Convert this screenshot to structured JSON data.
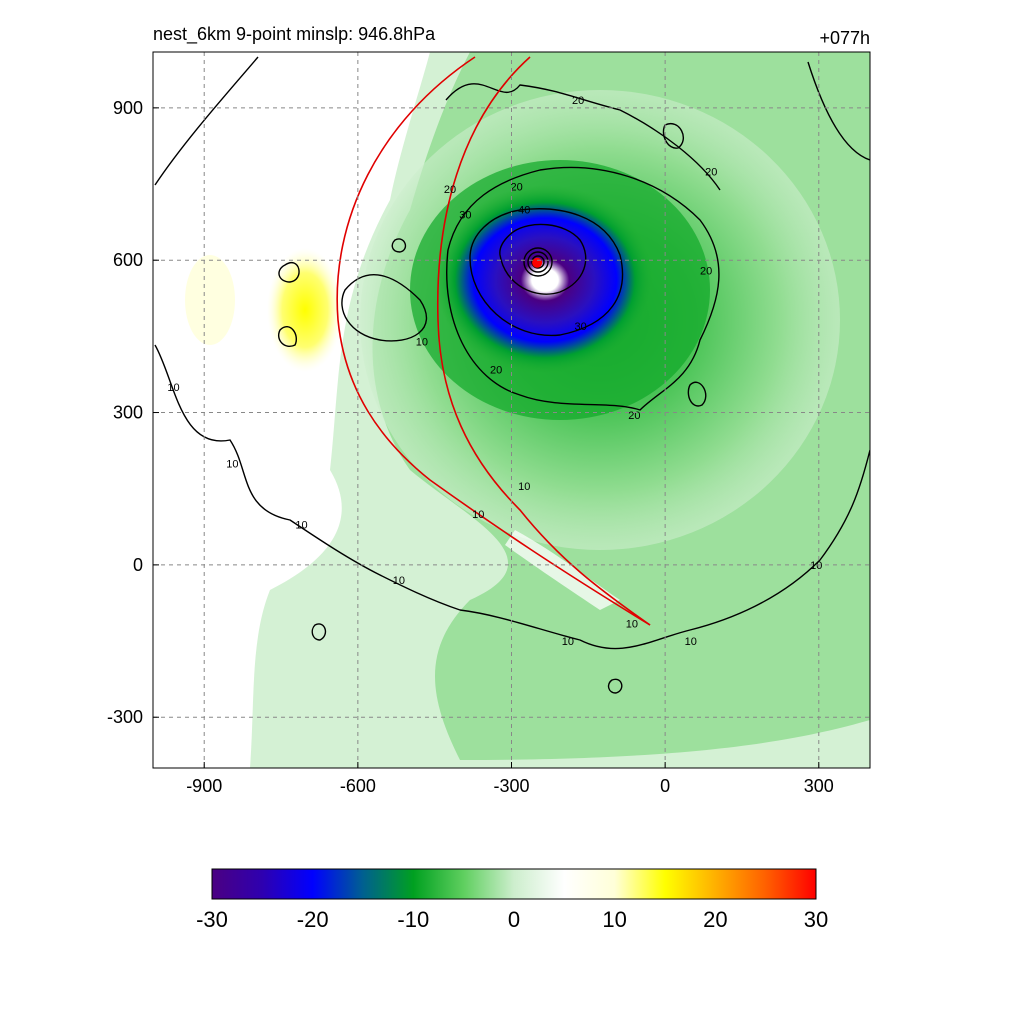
{
  "chart_data": {
    "type": "heatmap",
    "title": "nest_6km  9-point minslp: 946.8hPa",
    "forecast_hour": "+077h",
    "xlabel": "",
    "ylabel": "",
    "xlim": [
      -1000,
      400
    ],
    "ylim": [
      -400,
      1010
    ],
    "x_ticks": [
      -900,
      -600,
      -300,
      0,
      300
    ],
    "y_ticks": [
      -300,
      0,
      300,
      600,
      900
    ],
    "x_tick_labels": [
      "-900",
      "-600",
      "-300",
      "0",
      "300"
    ],
    "y_tick_labels": [
      "-300",
      "0",
      "300",
      "600",
      "900"
    ],
    "grid": true,
    "storm_center": {
      "x": -250,
      "y": 595
    },
    "colorbar": {
      "min": -30,
      "max": 30,
      "tick_values": [
        -30,
        -20,
        -10,
        0,
        10,
        20,
        30
      ],
      "tick_labels": [
        "-30",
        "-20",
        "-10",
        "0",
        "10",
        "20",
        "30"
      ],
      "colors_hex": [
        "#4b0082",
        "#2e00b0",
        "#0000ff",
        "#006090",
        "#00a020",
        "#5fcf5f",
        "#cdeecd",
        "#ffffff",
        "#ffffd8",
        "#ffff00",
        "#ffb000",
        "#ff6000",
        "#ff0000"
      ]
    },
    "contour_labels": [
      {
        "text": "20",
        "x": -170,
        "y": 915
      },
      {
        "text": "20",
        "x": 90,
        "y": 775
      },
      {
        "text": "20",
        "x": -420,
        "y": 740
      },
      {
        "text": "30",
        "x": -390,
        "y": 690
      },
      {
        "text": "20",
        "x": -290,
        "y": 745
      },
      {
        "text": "40",
        "x": -275,
        "y": 700
      },
      {
        "text": "20",
        "x": 80,
        "y": 580
      },
      {
        "text": "30",
        "x": -165,
        "y": 470
      },
      {
        "text": "10",
        "x": -475,
        "y": 440
      },
      {
        "text": "20",
        "x": -330,
        "y": 385
      },
      {
        "text": "20",
        "x": -60,
        "y": 295
      },
      {
        "text": "10",
        "x": -960,
        "y": 350
      },
      {
        "text": "10",
        "x": -845,
        "y": 200
      },
      {
        "text": "10",
        "x": -275,
        "y": 155
      },
      {
        "text": "10",
        "x": -365,
        "y": 100
      },
      {
        "text": "10",
        "x": -710,
        "y": 80
      },
      {
        "text": "10",
        "x": -520,
        "y": -30
      },
      {
        "text": "10",
        "x": -65,
        "y": -115
      },
      {
        "text": "10",
        "x": 50,
        "y": -150
      },
      {
        "text": "10",
        "x": 295,
        "y": 0
      },
      {
        "text": "10",
        "x": -190,
        "y": -150
      }
    ]
  }
}
